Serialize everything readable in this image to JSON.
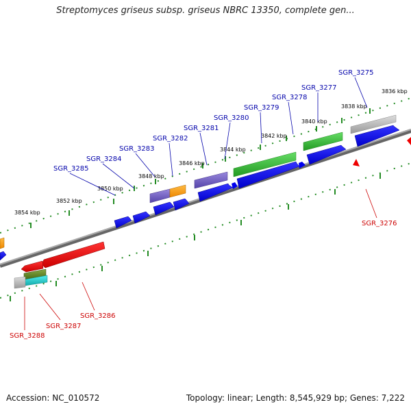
{
  "title": "Streptomyces griseus subsp. griseus NBRC 13350, complete gen...",
  "footer": {
    "accession": "Accession: NC_010572",
    "summary": "Topology: linear; Length: 8,545,929 bp; Genes: 7,222"
  },
  "colors": {
    "background": "#ffffff",
    "backbone": "#808080",
    "tick": "#228b22",
    "forward_label": "#0000aa",
    "reverse_label": "#cc0000",
    "cds_blue": "#0000ee",
    "cds_red": "#ee0000",
    "rna_green": "#33bb33",
    "cds_purple": "#7766cc",
    "cds_orange": "#ff9900",
    "cds_grey": "#bbbbbb",
    "cds_cyan": "#22cccc",
    "cds_olive": "#668822"
  },
  "scale_labels": [
    "3836 kbp",
    "3838 kbp",
    "3840 kbp",
    "3842 kbp",
    "3844 kbp",
    "3846 kbp",
    "3848 kbp",
    "3850 kbp",
    "3852 kbp",
    "3854 kbp"
  ],
  "forward_genes": [
    "SGR_3275",
    "SGR_3277",
    "SGR_3278",
    "SGR_3279",
    "SGR_3280",
    "SGR_3281",
    "SGR_3282",
    "SGR_3283",
    "SGR_3284",
    "SGR_3285"
  ],
  "reverse_genes": [
    "SGR_3276",
    "SGR_3286",
    "SGR_3287",
    "SGR_3288"
  ]
}
